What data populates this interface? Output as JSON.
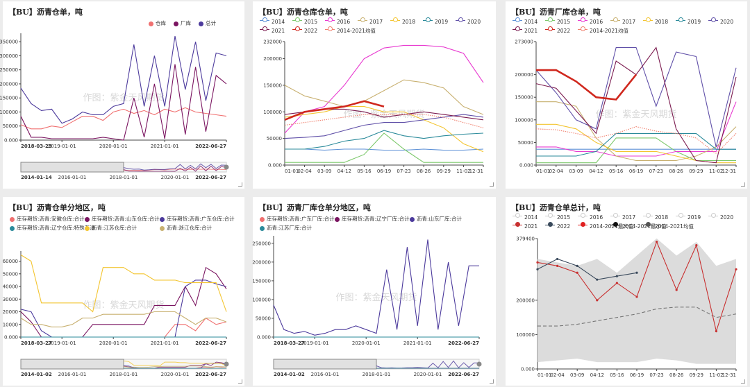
{
  "watermark": "作图：紫金天风期货",
  "chart_data": [
    {
      "id": "p1",
      "type": "line",
      "title": "【BU】沥青仓单，吨",
      "legend": [
        "仓库",
        "厂库",
        "总计"
      ],
      "colors": [
        "#f07070",
        "#7a1460",
        "#4c3a9c"
      ],
      "y_ticks": [
        0,
        50000,
        100000,
        150000,
        200000,
        250000,
        300000,
        350000
      ],
      "ylim": [
        0,
        380000
      ],
      "x_ticks": [
        "2018-03-29",
        "2019-01-01",
        "2020-01-01",
        "2021-01-01",
        "2022-06-27"
      ],
      "x_tick_pos": [
        0,
        0.2,
        0.45,
        0.7,
        1
      ],
      "slider_labels": [
        "2014-01-14",
        "2016-01-01",
        "2018-01-01",
        "2020-01-01",
        "2022-06-27"
      ],
      "series": [
        {
          "name": "仓库",
          "values": [
            55000,
            40000,
            40000,
            50000,
            45000,
            65000,
            85000,
            85000,
            70000,
            100000,
            110000,
            95000,
            105000,
            90000,
            110000,
            100000,
            115000,
            100000,
            95000,
            90000,
            85000
          ]
        },
        {
          "name": "厂库",
          "values": [
            85000,
            10000,
            10000,
            5000,
            5000,
            5000,
            5000,
            5000,
            10000,
            5000,
            0,
            150000,
            10000,
            200000,
            5000,
            270000,
            20000,
            260000,
            30000,
            230000,
            200000
          ]
        },
        {
          "name": "总计",
          "values": [
            185000,
            130000,
            105000,
            110000,
            60000,
            75000,
            100000,
            90000,
            90000,
            120000,
            130000,
            340000,
            120000,
            300000,
            120000,
            370000,
            180000,
            350000,
            140000,
            310000,
            300000
          ]
        }
      ]
    },
    {
      "id": "p2",
      "type": "line",
      "title": "【BU】沥青仓库仓单，吨",
      "legend": [
        "2014",
        "2015",
        "2016",
        "2017",
        "2018",
        "2019",
        "2020",
        "2021",
        "2022",
        "2014-2021均值"
      ],
      "colors": [
        "#5b8fd6",
        "#7cc86b",
        "#e83ad0",
        "#c8b070",
        "#f3c531",
        "#2a8a9a",
        "#6050a8",
        "#7c1c50",
        "#d0281e",
        "#f0806e"
      ],
      "y_ticks": [
        0,
        50000,
        100000,
        150000,
        200000,
        232000
      ],
      "ylim": [
        0,
        232000
      ],
      "x_ticks": [
        "01-01",
        "02-04",
        "03-09",
        "04-12",
        "05-16",
        "06-19",
        "07-23",
        "08-26",
        "09-29",
        "11-02",
        "12-31"
      ],
      "series": [
        {
          "name": "2014",
          "values": [
            30000,
            30000,
            28000,
            30000,
            30000,
            28000,
            28000,
            30000,
            28000,
            28000,
            30000
          ]
        },
        {
          "name": "2015",
          "values": [
            5000,
            5000,
            5000,
            5000,
            20000,
            60000,
            30000,
            5000,
            5000,
            5000,
            5000
          ]
        },
        {
          "name": "2016",
          "values": [
            60000,
            100000,
            110000,
            150000,
            200000,
            220000,
            225000,
            225000,
            222000,
            210000,
            155000
          ]
        },
        {
          "name": "2017",
          "values": [
            150000,
            130000,
            120000,
            110000,
            120000,
            140000,
            160000,
            155000,
            145000,
            110000,
            95000
          ]
        },
        {
          "name": "2018",
          "values": [
            90000,
            95000,
            100000,
            110000,
            110000,
            100000,
            100000,
            85000,
            70000,
            40000,
            25000
          ]
        },
        {
          "name": "2019",
          "values": [
            30000,
            30000,
            35000,
            45000,
            50000,
            65000,
            55000,
            50000,
            55000,
            58000,
            60000
          ]
        },
        {
          "name": "2020",
          "values": [
            50000,
            52000,
            55000,
            65000,
            75000,
            80000,
            80000,
            85000,
            90000,
            95000,
            90000
          ]
        },
        {
          "name": "2021",
          "values": [
            95000,
            100000,
            105000,
            105000,
            100000,
            90000,
            95000,
            100000,
            95000,
            90000,
            85000
          ]
        },
        {
          "name": "2022",
          "values": [
            85000,
            100000,
            105000,
            110000,
            120000,
            110000,
            null,
            null,
            null,
            null,
            null
          ]
        },
        {
          "name": "2014-2021均值",
          "values": [
            75000,
            80000,
            85000,
            90000,
            95000,
            95000,
            95000,
            95000,
            90000,
            80000,
            70000
          ]
        }
      ]
    },
    {
      "id": "p3",
      "type": "line",
      "title": "【BU】沥青厂库仓单，吨",
      "legend": [
        "2014",
        "2015",
        "2016",
        "2017",
        "2018",
        "2019",
        "2020",
        "2021",
        "2022",
        "2014-2021均值"
      ],
      "colors": [
        "#5b8fd6",
        "#7cc86b",
        "#e83ad0",
        "#c8b070",
        "#f3c531",
        "#2a8a9a",
        "#6050a8",
        "#7c1c50",
        "#d0281e",
        "#f0806e"
      ],
      "y_ticks": [
        0,
        50000,
        100000,
        150000,
        200000,
        273000
      ],
      "ylim": [
        0,
        273000
      ],
      "x_ticks": [
        "01-01",
        "02-04",
        "03-09",
        "04-12",
        "05-16",
        "06-19",
        "07-23",
        "08-26",
        "09-29",
        "11-02",
        "12-31"
      ],
      "series": [
        {
          "name": "2014",
          "values": [
            35000,
            35000,
            35000,
            35000,
            35000,
            35000,
            35000,
            35000,
            35000,
            35000,
            35000
          ]
        },
        {
          "name": "2015",
          "values": [
            5000,
            5000,
            5000,
            5000,
            60000,
            60000,
            60000,
            30000,
            10000,
            10000,
            10000
          ]
        },
        {
          "name": "2016",
          "values": [
            40000,
            40000,
            30000,
            30000,
            20000,
            20000,
            20000,
            30000,
            30000,
            30000,
            140000
          ]
        },
        {
          "name": "2017",
          "values": [
            140000,
            140000,
            130000,
            60000,
            20000,
            10000,
            10000,
            10000,
            20000,
            40000,
            85000
          ]
        },
        {
          "name": "2018",
          "values": [
            90000,
            90000,
            80000,
            50000,
            30000,
            30000,
            30000,
            20000,
            10000,
            5000,
            5000
          ]
        },
        {
          "name": "2019",
          "values": [
            20000,
            20000,
            20000,
            30000,
            70000,
            70000,
            70000,
            70000,
            70000,
            35000,
            35000
          ]
        },
        {
          "name": "2020",
          "values": [
            210000,
            160000,
            100000,
            80000,
            260000,
            260000,
            130000,
            250000,
            240000,
            40000,
            215000
          ]
        },
        {
          "name": "2021",
          "values": [
            180000,
            170000,
            120000,
            70000,
            230000,
            200000,
            260000,
            80000,
            10000,
            5000,
            195000
          ]
        },
        {
          "name": "2022",
          "values": [
            210000,
            210000,
            185000,
            150000,
            145000,
            200000,
            null,
            null,
            null,
            null,
            null
          ]
        },
        {
          "name": "2014-2021均值",
          "values": [
            80000,
            78000,
            70000,
            60000,
            70000,
            85000,
            75000,
            70000,
            60000,
            25000,
            70000
          ]
        }
      ]
    },
    {
      "id": "p4",
      "type": "line",
      "title": "【BU】沥青仓单分地区，吨",
      "legend": [
        "库存期货:沥青:安徽仓库:合计",
        "库存期货:沥青:山东仓库:合计",
        "库存期货:沥青:广东仓库:合计",
        "库存期货:沥青:辽宁仓库:特殊石油",
        "沥青:江苏仓库:合计",
        "沥青:浙江仓库:合计"
      ],
      "colors": [
        "#f07070",
        "#7a1460",
        "#4c3a9c",
        "#2a8a9a",
        "#f3c531",
        "#c8b070"
      ],
      "y_ticks": [
        0,
        10000,
        20000,
        30000,
        40000,
        50000,
        60000
      ],
      "ylim": [
        0,
        68000
      ],
      "x_ticks": [
        "2018-03-27",
        "2019-01-01",
        "2020-01-01",
        "2021-01-01",
        "2022-06-27"
      ],
      "x_tick_pos": [
        0,
        0.2,
        0.45,
        0.7,
        1
      ],
      "slider_labels": [
        "2014-01-02",
        "2016-01-01",
        "2018-01-01",
        "2020-01-01",
        "2022-06-27"
      ],
      "series": [
        {
          "name": "库存期货:沥青:安徽仓库:合计",
          "values": [
            0,
            0,
            0,
            0,
            0,
            0,
            0,
            0,
            0,
            0,
            0,
            0,
            0,
            0,
            0,
            10000,
            10000,
            5000,
            15000,
            10000,
            12000
          ]
        },
        {
          "name": "库存期货:沥青:山东仓库:合计",
          "values": [
            20000,
            12000,
            0,
            0,
            0,
            0,
            0,
            10000,
            10000,
            10000,
            10000,
            10000,
            10000,
            25000,
            25000,
            25000,
            40000,
            25000,
            55000,
            50000,
            38000
          ]
        },
        {
          "name": "库存期货:沥青:广东仓库:合计",
          "values": [
            22000,
            20000,
            5000,
            0,
            0,
            0,
            0,
            0,
            0,
            0,
            0,
            0,
            0,
            0,
            0,
            0,
            40000,
            45000,
            45000,
            42000,
            40000
          ]
        },
        {
          "name": "库存期货:沥青:辽宁仓库:特殊石油",
          "values": [
            0,
            0,
            0,
            0,
            0,
            0,
            0,
            0,
            0,
            0,
            0,
            0,
            0,
            0,
            0,
            0,
            0,
            0,
            0,
            0,
            0
          ]
        },
        {
          "name": "沥青:江苏仓库:合计",
          "values": [
            65000,
            60000,
            27000,
            27000,
            27000,
            27000,
            27000,
            20000,
            55000,
            55000,
            55000,
            50000,
            50000,
            45000,
            45000,
            45000,
            43000,
            43000,
            43000,
            43000,
            20000
          ]
        },
        {
          "name": "沥青:浙江仓库:合计",
          "values": [
            15000,
            10000,
            10000,
            8000,
            8000,
            10000,
            15000,
            15000,
            18000,
            18000,
            18000,
            18000,
            18000,
            20000,
            20000,
            20000,
            15000,
            10000,
            15000,
            15000,
            12000
          ]
        }
      ]
    },
    {
      "id": "p5",
      "type": "line",
      "title": "【BU】沥青厂库仓单分地区，吨",
      "legend": [
        "库存期货:沥青:广东厂库:合计",
        "库存期货:沥青:辽宁厂库:合计",
        "沥青:山东厂库:合计",
        "沥青:江苏厂库:合计"
      ],
      "colors": [
        "#f07070",
        "#7a1460",
        "#4c3a9c",
        "#2a8a9a"
      ],
      "y_ticks": [
        0,
        50000,
        100000,
        150000,
        200000,
        250000
      ],
      "ylim": [
        0,
        270000
      ],
      "x_ticks": [
        "2018-03-27",
        "2019-01-01",
        "2020-01-01",
        "2021-01-01",
        "2022-06-27"
      ],
      "x_tick_pos": [
        0,
        0.2,
        0.45,
        0.7,
        1
      ],
      "slider_labels": [
        "2014-01-02",
        "2016-01-01",
        "2018-01-01",
        "2020-01-01",
        "2022-06-27"
      ],
      "series": [
        {
          "name": "库存期货:沥青:广东厂库:合计",
          "values": [
            0,
            0,
            0,
            0,
            0,
            0,
            0,
            0,
            0,
            0,
            0,
            0,
            0,
            0,
            0,
            0,
            0,
            0,
            0,
            0,
            0
          ]
        },
        {
          "name": "库存期货:沥青:辽宁厂库:合计",
          "values": [
            0,
            0,
            0,
            0,
            0,
            0,
            0,
            0,
            0,
            0,
            0,
            0,
            0,
            0,
            0,
            0,
            0,
            0,
            0,
            0,
            0
          ]
        },
        {
          "name": "沥青:山东厂库:合计",
          "values": [
            85000,
            20000,
            10000,
            15000,
            5000,
            10000,
            20000,
            20000,
            30000,
            20000,
            10000,
            180000,
            20000,
            240000,
            30000,
            260000,
            20000,
            200000,
            30000,
            190000,
            190000
          ]
        },
        {
          "name": "沥青:江苏厂库:合计",
          "values": [
            0,
            0,
            0,
            0,
            0,
            0,
            0,
            0,
            0,
            0,
            0,
            0,
            0,
            0,
            0,
            0,
            0,
            0,
            0,
            0,
            0
          ]
        }
      ]
    },
    {
      "id": "p6",
      "type": "area",
      "title": "【BU】沥青仓单总计，吨",
      "legend": [
        "2014",
        "2015",
        "2016",
        "2017",
        "2018",
        "2019",
        "2020",
        "2021",
        "2022",
        "2014-2021最大值",
        "2014-2021最小值",
        "2014-2021均值"
      ],
      "colors": [
        "#cccccc",
        "#cccccc",
        "#cccccc",
        "#cccccc",
        "#cccccc",
        "#cccccc",
        "#cccccc",
        "#c83030",
        "#3a4a5c",
        "#e02020",
        "#111111",
        "#555555"
      ],
      "y_ticks": [
        0,
        100000,
        200000,
        379400
      ],
      "ylim": [
        0,
        379400
      ],
      "x_ticks": [
        "01-01",
        "02-04",
        "03-09",
        "04-12",
        "05-16",
        "06-19",
        "07-23",
        "08-26",
        "09-29",
        "11-02",
        "12-31"
      ],
      "series": [
        {
          "name": "2014-2021最大值",
          "values": [
            320000,
            310000,
            300000,
            320000,
            280000,
            330000,
            380000,
            330000,
            370000,
            300000,
            320000
          ]
        },
        {
          "name": "2014-2021最小值",
          "values": [
            20000,
            25000,
            30000,
            20000,
            20000,
            20000,
            30000,
            25000,
            15000,
            15000,
            15000
          ]
        },
        {
          "name": "2014-2021均值",
          "values": [
            125000,
            125000,
            130000,
            140000,
            150000,
            160000,
            175000,
            180000,
            180000,
            150000,
            160000
          ]
        },
        {
          "name": "2021",
          "values": [
            310000,
            300000,
            280000,
            200000,
            250000,
            210000,
            370000,
            230000,
            360000,
            110000,
            290000
          ]
        },
        {
          "name": "2022",
          "values": [
            290000,
            320000,
            300000,
            260000,
            270000,
            280000,
            null,
            null,
            null,
            null,
            null
          ]
        }
      ]
    }
  ]
}
